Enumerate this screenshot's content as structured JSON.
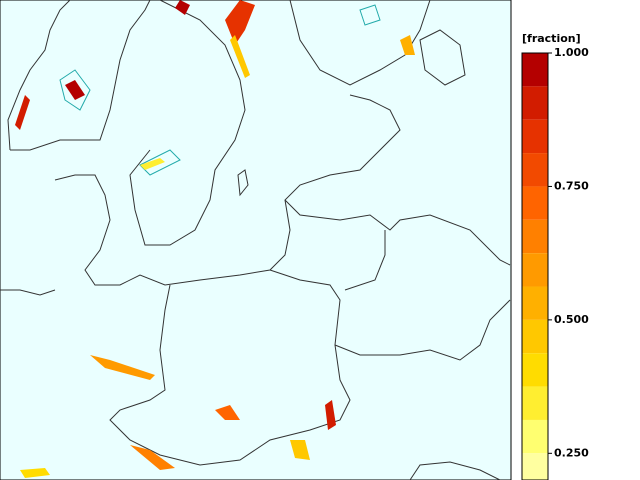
{
  "map": {
    "colorbar": {
      "label": "[fraction]",
      "lim": [
        0.2,
        1
      ],
      "levels": [
        1,
        0.9375,
        0.875,
        0.8125,
        0.75,
        0.6875,
        0.625,
        0.5625,
        0.5,
        0.4375,
        0.375,
        0.3125,
        0.25,
        0.1875
      ],
      "colors": [
        "#b40000",
        "#d21c00",
        "#e63200",
        "#f24a00",
        "#ff6400",
        "#ff8000",
        "#ff9a00",
        "#ffb000",
        "#ffc800",
        "#ffdc00",
        "#ffee30",
        "#ffff70",
        "#ffffa0"
      ],
      "ticks": [
        {
          "value": 1,
          "label": "1.000"
        },
        {
          "value": 0.75,
          "label": "0.750"
        },
        {
          "value": 0.5,
          "label": "0.500"
        },
        {
          "value": 0.25,
          "label": "0.250"
        }
      ]
    }
  }
}
